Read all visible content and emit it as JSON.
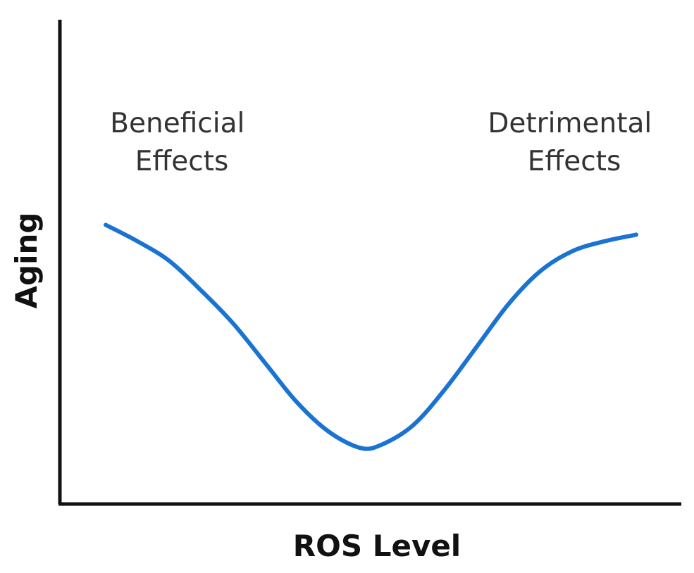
{
  "chart_data": {
    "type": "line",
    "title": "",
    "xlabel": "ROS Level",
    "ylabel": "Aging",
    "xlim": [
      0,
      100
    ],
    "ylim": [
      0,
      100
    ],
    "grid": false,
    "ticks_shown": false,
    "colors": {
      "curve": "#1a73d1",
      "axis": "#111111",
      "annotation": "#333333"
    },
    "series": [
      {
        "x": [
          0,
          6,
          12,
          18,
          24,
          30,
          36,
          42,
          48,
          52,
          58,
          64,
          70,
          76,
          82,
          88,
          94,
          100
        ],
        "values": [
          69,
          64,
          58,
          49,
          39,
          27,
          15,
          6,
          1,
          2,
          8,
          19,
          32,
          45,
          55,
          61,
          64,
          66
        ]
      }
    ],
    "annotations": [
      {
        "id": "beneficial",
        "lines": [
          "Beneficial",
          "Effects"
        ],
        "position": "top-left"
      },
      {
        "id": "detrimental",
        "lines": [
          "Detrimental",
          "Effects"
        ],
        "position": "top-right"
      }
    ]
  }
}
